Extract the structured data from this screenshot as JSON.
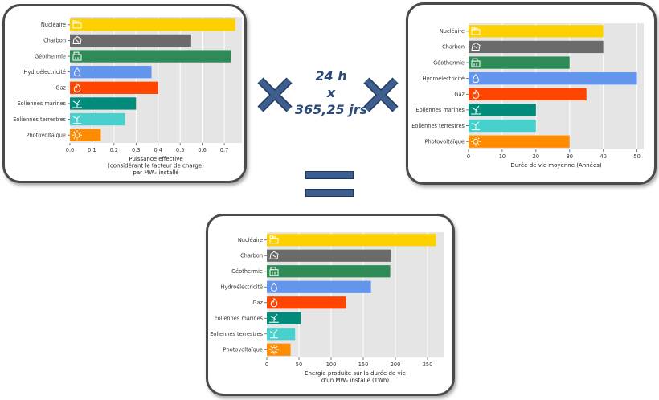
{
  "operator_text": {
    "line1": "24 h",
    "line2": "x",
    "line3": "365,25 jrs"
  },
  "colors": {
    "Nucléaire": "#ffd000",
    "Charbon": "#6b6b6b",
    "Géothermie": "#2e8b57",
    "Hydroélectricité": "#6495ed",
    "Gaz": "#ff4500",
    "Eoliennes marines": "#008b7a",
    "Eoliennes terrestres": "#48d1cc",
    "Photovoltaïque": "#ff8c00"
  },
  "icons": {
    "Nucléaire": "nuclear-plant-icon",
    "Charbon": "coal-icon",
    "Géothermie": "geothermal-icon",
    "Hydroélectricité": "water-drop-icon",
    "Gaz": "flame-icon",
    "Eoliennes marines": "offshore-wind-icon",
    "Eoliennes terrestres": "onshore-wind-icon",
    "Photovoltaïque": "sun-icon"
  },
  "chart_data": [
    {
      "type": "bar",
      "orientation": "horizontal",
      "categories": [
        "Nucléaire",
        "Charbon",
        "Géothermie",
        "Hydroélectricité",
        "Gaz",
        "Eoliennes marines",
        "Eoliennes terrestres",
        "Photovoltaïque"
      ],
      "values": [
        0.75,
        0.55,
        0.73,
        0.37,
        0.4,
        0.3,
        0.25,
        0.14
      ],
      "xlabel_lines": [
        "Puissance effective",
        "(considérant le facteur de charge)",
        "par MWₑ installé"
      ],
      "xlim": [
        0,
        0.78
      ],
      "xticks": [
        "0.0",
        "0.1",
        "0.2",
        "0.3",
        "0.4",
        "0.5",
        "0.6",
        "0.7"
      ],
      "grid": true
    },
    {
      "type": "bar",
      "orientation": "horizontal",
      "categories": [
        "Nucléaire",
        "Charbon",
        "Géothermie",
        "Hydroélectricité",
        "Gaz",
        "Eoliennes marines",
        "Eoliennes terrestres",
        "Photovoltaïque"
      ],
      "values": [
        40,
        40,
        30,
        50,
        35,
        20,
        20,
        30
      ],
      "xlabel_lines": [
        "Durée de vie moyenne (Années)"
      ],
      "xlim": [
        0,
        52
      ],
      "xticks": [
        "0",
        "10",
        "20",
        "30",
        "40",
        "50"
      ],
      "grid": true
    },
    {
      "type": "bar",
      "orientation": "horizontal",
      "categories": [
        "Nucléaire",
        "Charbon",
        "Géothermie",
        "Hydroélectricité",
        "Gaz",
        "Eoliennes marines",
        "Eoliennes terrestres",
        "Photovoltaïque"
      ],
      "values": [
        263,
        193,
        192,
        162,
        123,
        53,
        44,
        37
      ],
      "xlabel_lines": [
        "Energie produite sur la durée de vie",
        "d'un MWₑ installé (TWh)"
      ],
      "xlim": [
        0,
        275
      ],
      "xticks": [
        "0",
        "50",
        "100",
        "150",
        "200",
        "250"
      ],
      "grid": true
    }
  ]
}
